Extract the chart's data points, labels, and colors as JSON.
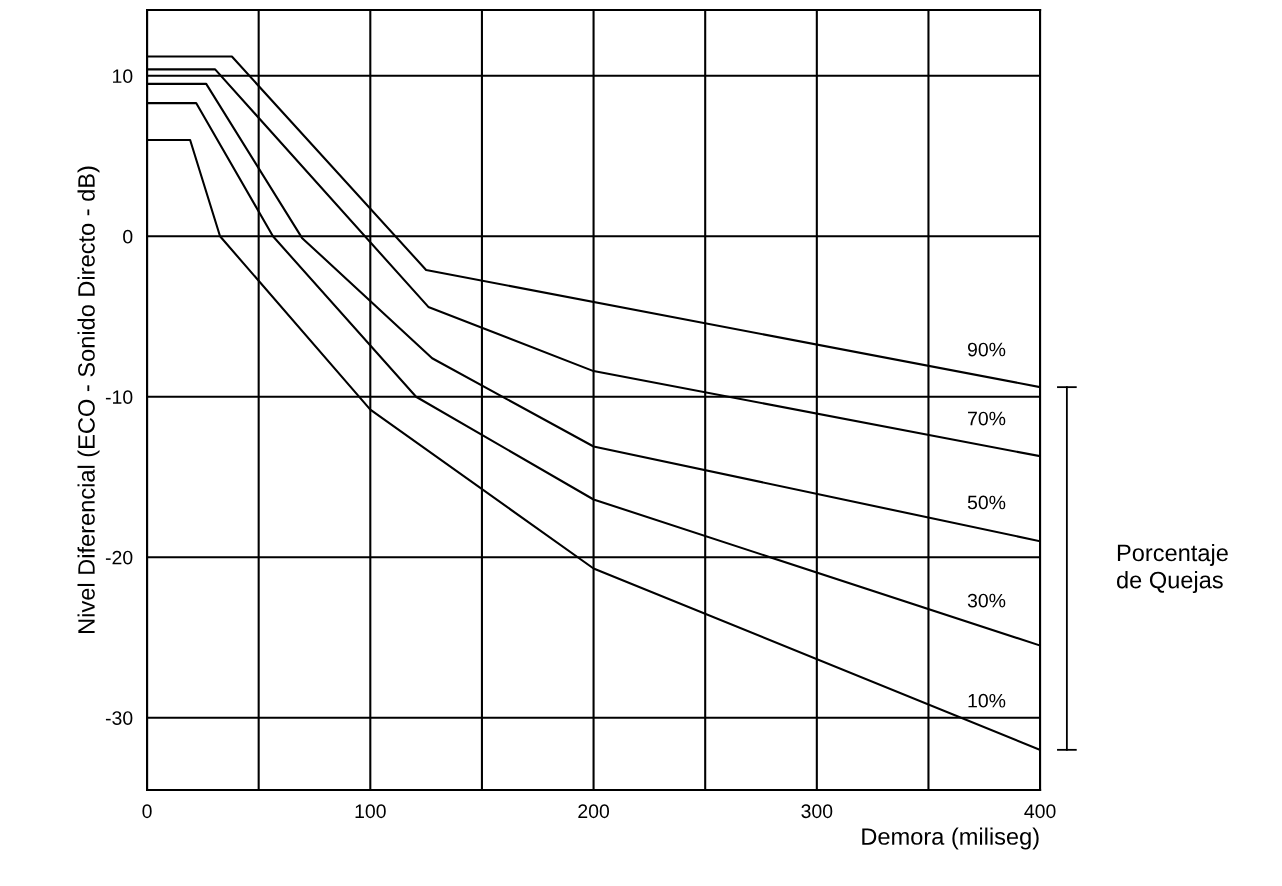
{
  "chart_data": {
    "type": "line",
    "xlabel": "Demora (miliseg)",
    "ylabel": "Nivel Diferencial (ECO - Sonido Directo - dB)",
    "xlim": [
      0,
      400
    ],
    "ylim": [
      -34.5,
      14.1
    ],
    "xticks": [
      0,
      {
        "value": 50,
        "label": null
      },
      100,
      {
        "value": 150,
        "label": null
      },
      200,
      {
        "value": 250,
        "label": null
      },
      300,
      {
        "value": 350,
        "label": null
      },
      400
    ],
    "yticks": [
      10,
      0,
      -10,
      -20,
      -30
    ],
    "grid": true,
    "legend": false,
    "marker": "none",
    "line_style": "solid",
    "series": [
      {
        "name": "90%",
        "color": "#000000",
        "x": [
          0,
          38,
          125,
          400
        ],
        "values": [
          11.2,
          11.2,
          -2.1,
          -9.4
        ]
      },
      {
        "name": "70%",
        "color": "#000000",
        "x": [
          0,
          30.5,
          126,
          200,
          400
        ],
        "values": [
          10.4,
          10.4,
          -4.4,
          -8.4,
          -13.7
        ]
      },
      {
        "name": "50%",
        "color": "#000000",
        "x": [
          0,
          26.5,
          69.4,
          127.7,
          200,
          400
        ],
        "values": [
          9.5,
          9.5,
          -0.1,
          -7.6,
          -13.1,
          -19.0
        ]
      },
      {
        "name": "30%",
        "color": "#000000",
        "x": [
          0,
          22,
          56.4,
          120.5,
          200,
          400
        ],
        "values": [
          8.3,
          8.3,
          0,
          -10.0,
          -16.4,
          -25.5
        ]
      },
      {
        "name": "10%",
        "color": "#000000",
        "x": [
          0,
          19.3,
          32.7,
          100,
          200,
          400
        ],
        "values": [
          6.0,
          6.0,
          0,
          -10.8,
          -20.7,
          -32.0
        ]
      }
    ],
    "annotations": [
      "Porcentaje\nde Quejas"
    ]
  }
}
